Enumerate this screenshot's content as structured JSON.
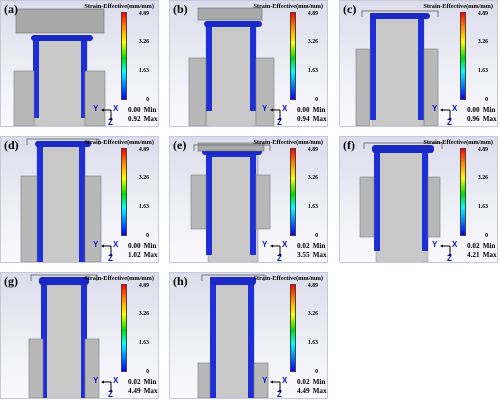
{
  "legend_title": "Strain-Effective(mm/mm)",
  "ticks": [
    "4.89",
    "3.26",
    "1.63",
    "0"
  ],
  "axes": {
    "y": "Y",
    "x": "X",
    "z": "Z"
  },
  "panels": [
    {
      "label": "(a)",
      "min": "0.00",
      "max": "0.92",
      "min_label": "Min",
      "max_label": "Max"
    },
    {
      "label": "(b)",
      "min": "0.00",
      "max": "0.94",
      "min_label": "Min",
      "max_label": "Max"
    },
    {
      "label": "(c)",
      "min": "0.00",
      "max": "0.96",
      "min_label": "Min",
      "max_label": "Max"
    },
    {
      "label": "(d)",
      "min": "0.00",
      "max": "1.02",
      "min_label": "Min",
      "max_label": "Max"
    },
    {
      "label": "(e)",
      "min": "0.02",
      "max": "3.55",
      "min_label": "Min",
      "max_label": "Max"
    },
    {
      "label": "(f)",
      "min": "0.02",
      "max": "4.21",
      "min_label": "Min",
      "max_label": "Max"
    },
    {
      "label": "(g)",
      "min": "0.02",
      "max": "4.49",
      "min_label": "Min",
      "max_label": "Max"
    },
    {
      "label": "(h)",
      "min": "0.02",
      "max": "4.49",
      "min_label": "Min",
      "max_label": "Max"
    }
  ],
  "colors": {
    "strain_low": "#1e2fd6",
    "die": "#b8b8b8",
    "rod": "#c9c9c9"
  }
}
